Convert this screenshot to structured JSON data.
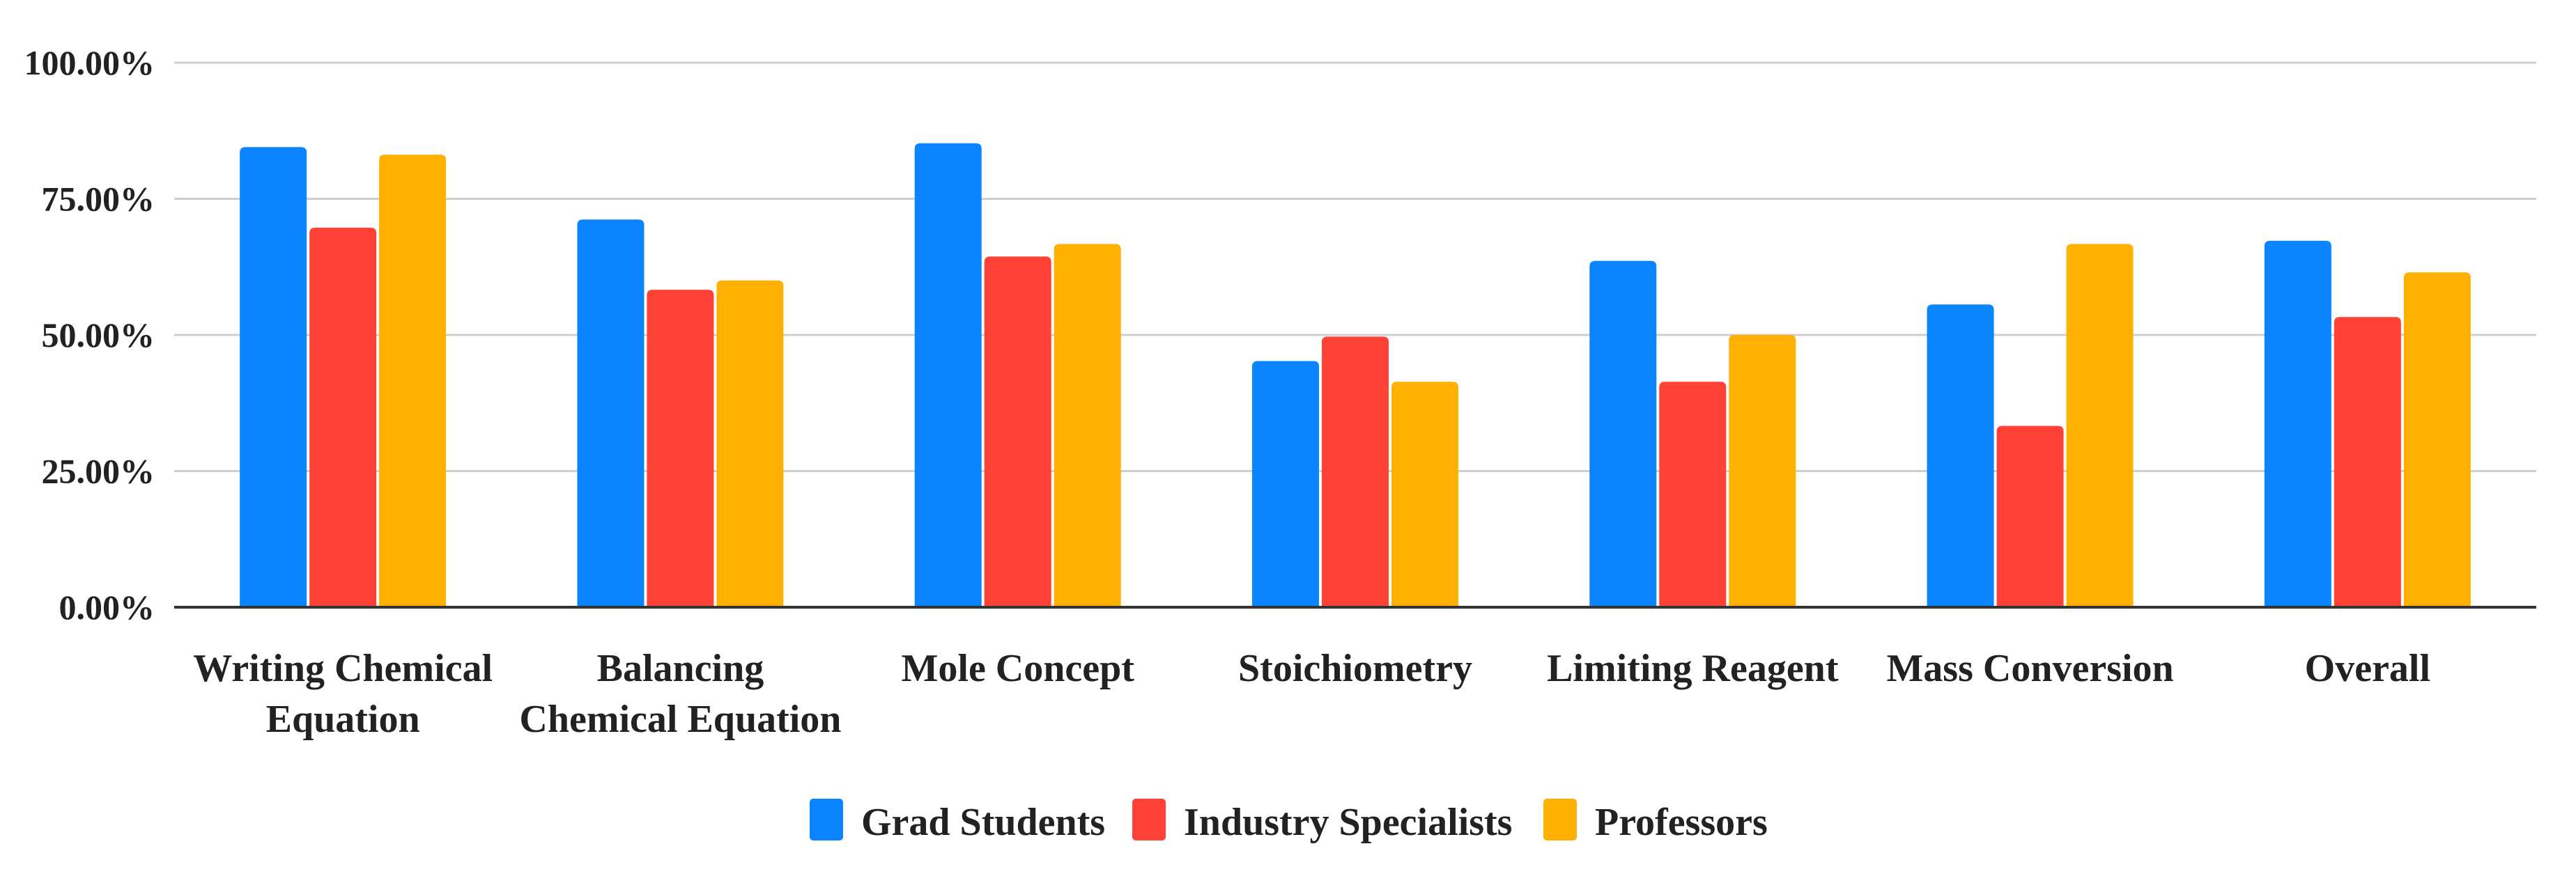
{
  "chart_data": {
    "type": "bar",
    "title": "",
    "xlabel": "",
    "ylabel": "",
    "ylim": [
      0,
      100
    ],
    "yticks": [
      "0.00%",
      "25.00%",
      "50.00%",
      "75.00%",
      "100.00%"
    ],
    "grid": true,
    "legend_position": "bottom-center",
    "categories": [
      [
        "Writing Chemical",
        "Equation"
      ],
      [
        "Balancing",
        "Chemical Equation"
      ],
      [
        "Mole Concept"
      ],
      [
        "Stoichiometry"
      ],
      [
        "Limiting Reagent"
      ],
      [
        "Mass Conversion"
      ],
      [
        "Overall"
      ]
    ],
    "series": [
      {
        "name": "Grad Students",
        "color": "#0a84ff",
        "values": [
          84.5,
          71.2,
          85.2,
          45.2,
          63.6,
          55.6,
          67.3
        ]
      },
      {
        "name": "Industry Specialists",
        "color": "#ff4136",
        "values": [
          69.7,
          58.3,
          64.4,
          49.7,
          41.4,
          33.3,
          53.3
        ]
      },
      {
        "name": "Professors",
        "color": "#ffb000",
        "values": [
          83.1,
          60.0,
          66.7,
          41.4,
          50.0,
          66.7,
          61.5
        ]
      }
    ]
  }
}
